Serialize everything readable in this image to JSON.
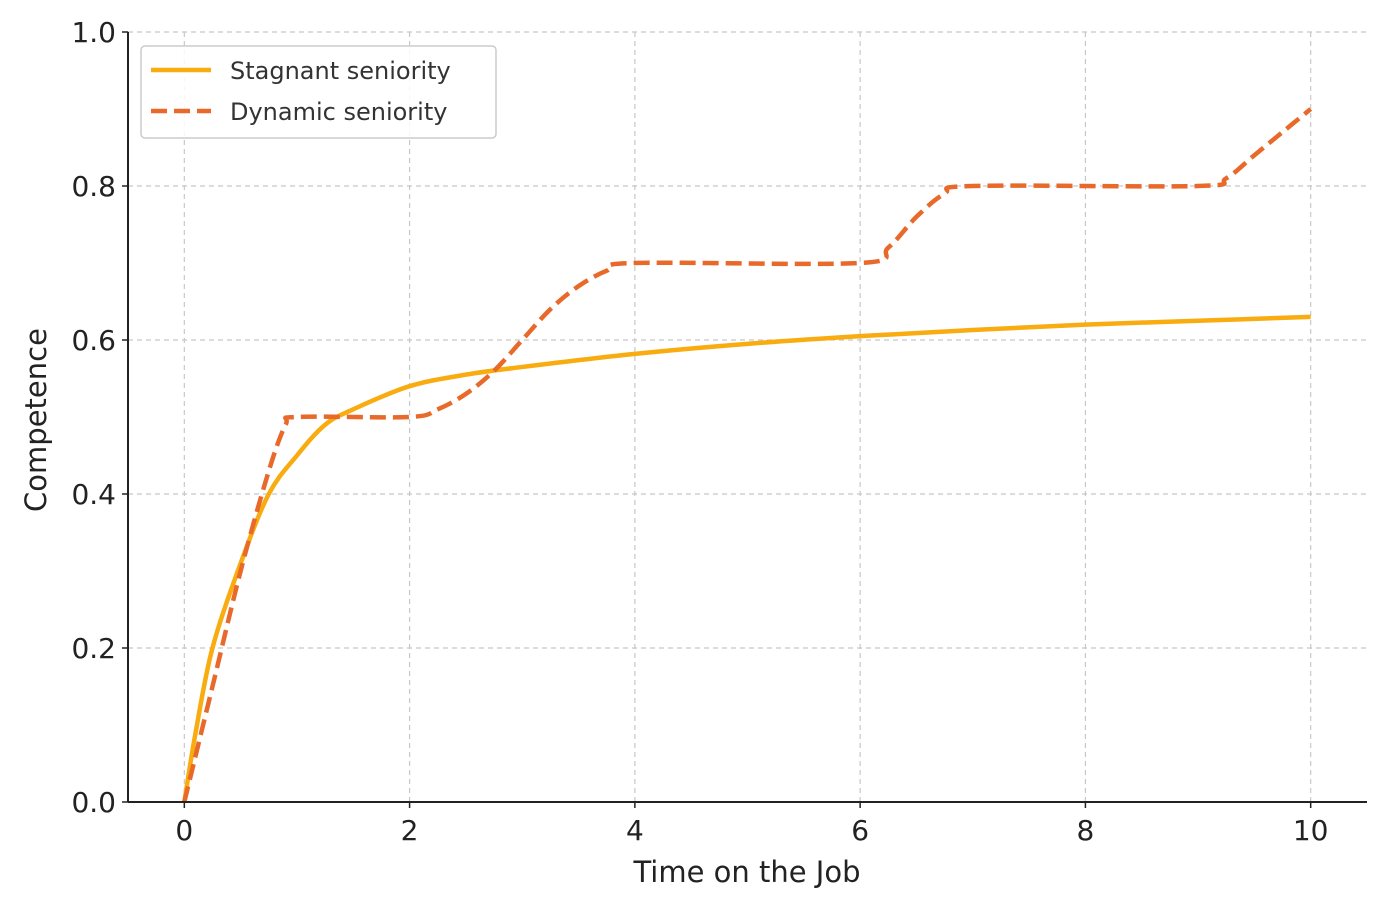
{
  "chart_data": {
    "type": "line",
    "title": "",
    "xlabel": "Time on the Job",
    "ylabel": "Competence",
    "xlim": [
      -0.5,
      10.5
    ],
    "ylim": [
      0,
      1
    ],
    "xticks": [
      0,
      2,
      4,
      6,
      8,
      10
    ],
    "yticks": [
      0.0,
      0.2,
      0.4,
      0.6,
      0.8,
      1.0
    ],
    "xtick_labels": [
      "0",
      "2",
      "4",
      "6",
      "8",
      "10"
    ],
    "ytick_labels": [
      "0.0",
      "0.2",
      "0.4",
      "0.6",
      "0.8",
      "1.0"
    ],
    "grid": true,
    "legend_position": "top-left",
    "series": [
      {
        "name": "Stagnant seniority",
        "color": "#F8AC10",
        "style": "solid",
        "x": [
          0,
          0.1,
          0.25,
          0.5,
          0.75,
          1,
          1.25,
          1.5,
          2,
          2.5,
          3,
          4,
          5,
          6,
          7,
          8,
          9,
          10
        ],
        "y": [
          0,
          0.09,
          0.2,
          0.31,
          0.4,
          0.45,
          0.49,
          0.51,
          0.54,
          0.555,
          0.565,
          0.582,
          0.595,
          0.605,
          0.613,
          0.62,
          0.625,
          0.63
        ]
      },
      {
        "name": "Dynamic seniority",
        "color": "#E8692A",
        "style": "dashed",
        "x": [
          0,
          0.25,
          0.5,
          0.75,
          0.9,
          1,
          2,
          2.25,
          2.5,
          2.75,
          3,
          3.25,
          3.5,
          3.75,
          4,
          6,
          6.25,
          6.5,
          6.75,
          7,
          9,
          9.25,
          9.5,
          9.75,
          10
        ],
        "y": [
          0,
          0.15,
          0.3,
          0.43,
          0.49,
          0.5,
          0.5,
          0.51,
          0.53,
          0.56,
          0.6,
          0.64,
          0.67,
          0.69,
          0.7,
          0.7,
          0.72,
          0.76,
          0.79,
          0.8,
          0.8,
          0.81,
          0.84,
          0.87,
          0.9
        ]
      }
    ]
  }
}
